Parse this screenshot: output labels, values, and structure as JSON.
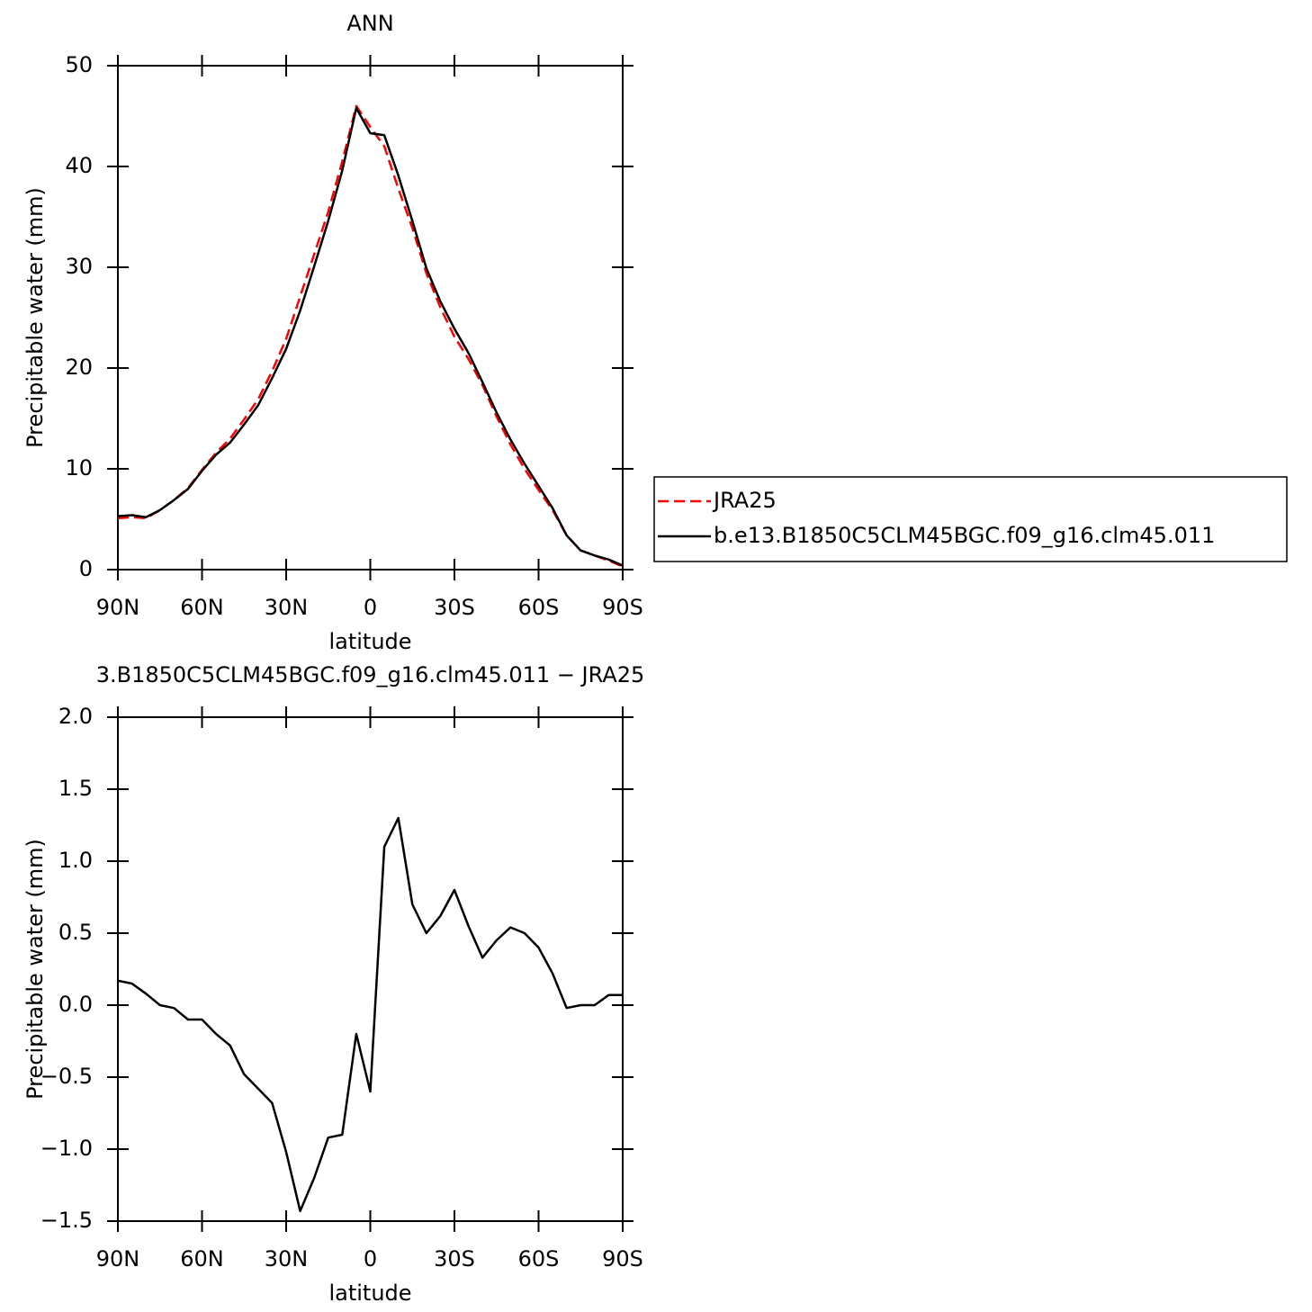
{
  "chart_data": [
    {
      "type": "line",
      "title": "ANN",
      "xlabel": "latitude",
      "ylabel": "Precipitable water (mm)",
      "x": [
        90,
        85,
        80,
        75,
        70,
        65,
        60,
        55,
        50,
        45,
        40,
        35,
        30,
        25,
        20,
        15,
        10,
        5,
        0,
        -5,
        -10,
        -15,
        -20,
        -25,
        -30,
        -35,
        -40,
        -45,
        -50,
        -55,
        -60,
        -65,
        -70,
        -75,
        -80,
        -85,
        -90
      ],
      "series": [
        {
          "name": "JRA25",
          "color": "#ff0000",
          "style": "dashed",
          "values": [
            5.1,
            5.2,
            5.1,
            5.9,
            6.9,
            8.1,
            9.9,
            11.6,
            13.0,
            14.9,
            16.9,
            19.7,
            22.9,
            27.1,
            31.3,
            35.5,
            40.5,
            46.0,
            43.9,
            42.0,
            37.8,
            33.9,
            29.4,
            26.0,
            23.1,
            20.9,
            18.3,
            15.2,
            12.4,
            10.0,
            7.9,
            5.9,
            3.4,
            1.9,
            1.4,
            0.9,
            0.3
          ]
        },
        {
          "name": "b.e13.B1850C5CLM45BGC.f09_g16.clm45.011",
          "color": "#000000",
          "style": "solid",
          "values": [
            5.3,
            5.4,
            5.2,
            5.9,
            6.9,
            8.0,
            9.8,
            11.4,
            12.6,
            14.4,
            16.3,
            19.0,
            21.9,
            25.7,
            30.1,
            34.6,
            39.6,
            45.8,
            43.3,
            43.1,
            39.1,
            34.6,
            29.9,
            26.6,
            23.9,
            21.5,
            18.6,
            15.6,
            12.9,
            10.5,
            8.3,
            6.1,
            3.4,
            1.9,
            1.4,
            1.0,
            0.4
          ]
        }
      ],
      "xlim": [
        90,
        -90
      ],
      "xticks": [
        {
          "value": 90,
          "label": "90N"
        },
        {
          "value": 60,
          "label": "60N"
        },
        {
          "value": 30,
          "label": "30N"
        },
        0,
        {
          "value": -30,
          "label": "30S"
        },
        {
          "value": -60,
          "label": "60S"
        },
        {
          "value": -90,
          "label": "90S"
        }
      ],
      "ylim": [
        0,
        50
      ],
      "yticks": [
        0,
        10,
        20,
        30,
        40,
        50
      ],
      "legend": "right"
    },
    {
      "type": "line",
      "title": "3.B1850C5CLM45BGC.f09_g16.clm45.011 − JRA25",
      "xlabel": "latitude",
      "ylabel": "Precipitable water (mm)",
      "x": [
        90,
        85,
        80,
        75,
        70,
        65,
        60,
        55,
        50,
        45,
        40,
        35,
        30,
        25,
        20,
        15,
        10,
        5,
        0,
        -5,
        -10,
        -15,
        -20,
        -25,
        -30,
        -35,
        -40,
        -45,
        -50,
        -55,
        -60,
        -65,
        -70,
        -75,
        -80,
        -85,
        -90
      ],
      "series": [
        {
          "color": "#000000",
          "style": "solid",
          "values": [
            0.17,
            0.15,
            0.08,
            0.0,
            -0.02,
            -0.1,
            -0.1,
            -0.2,
            -0.28,
            -0.48,
            -0.58,
            -0.68,
            -1.02,
            -1.43,
            -1.2,
            -0.92,
            -0.9,
            -0.2,
            -0.6,
            1.1,
            1.3,
            0.7,
            0.5,
            0.62,
            0.8,
            0.55,
            0.33,
            0.45,
            0.54,
            0.5,
            0.4,
            0.22,
            -0.02,
            0.0,
            0.0,
            0.07,
            0.07
          ]
        }
      ],
      "xlim": [
        90,
        -90
      ],
      "xticks": [
        {
          "value": 90,
          "label": "90N"
        },
        {
          "value": 60,
          "label": "60N"
        },
        {
          "value": 30,
          "label": "30N"
        },
        0,
        {
          "value": -30,
          "label": "30S"
        },
        {
          "value": -60,
          "label": "60S"
        },
        {
          "value": -90,
          "label": "90S"
        }
      ],
      "ylim": [
        -1.5,
        2.0
      ],
      "yticks": [
        {
          "value": -1.5,
          "label": "−1.5"
        },
        {
          "value": -1.0,
          "label": "−1.0"
        },
        {
          "value": -0.5,
          "label": "−0.5"
        },
        {
          "value": 0.0,
          "label": "0.0"
        },
        {
          "value": 0.5,
          "label": "0.5"
        },
        {
          "value": 1.0,
          "label": "1.0"
        },
        {
          "value": 1.5,
          "label": "1.5"
        },
        {
          "value": 2.0,
          "label": "2.0"
        }
      ]
    }
  ]
}
